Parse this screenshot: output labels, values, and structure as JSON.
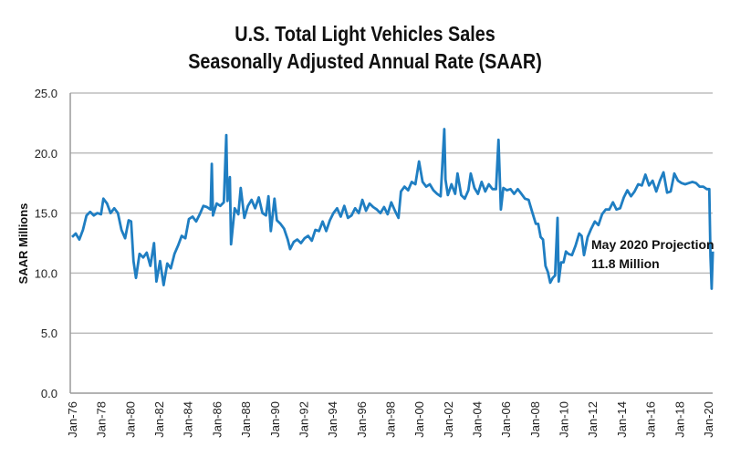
{
  "chart_data": {
    "type": "line",
    "title": "U.S. Total Light Vehicles Sales",
    "subtitle": "Seasonally Adjusted Annual Rate (SAAR)",
    "xlabel": "",
    "ylabel": "SAAR Millions",
    "ylim": [
      0,
      25
    ],
    "yticks": [
      "0.0",
      "5.0",
      "10.0",
      "15.0",
      "20.0",
      "25.0"
    ],
    "xticks": [
      "Jan-76",
      "Jan-78",
      "Jan-80",
      "Jan-82",
      "Jan-84",
      "Jan-86",
      "Jan-88",
      "Jan-90",
      "Jan-92",
      "Jan-94",
      "Jan-96",
      "Jan-98",
      "Jan-00",
      "Jan-02",
      "Jan-04",
      "Jan-06",
      "Jan-08",
      "Jan-10",
      "Jan-12",
      "Jan-14",
      "Jan-16",
      "Jan-18",
      "Jan-20"
    ],
    "grid": "horizontal",
    "line_color": "#1f7ec2",
    "annotation": {
      "line1": "May 2020 Projection",
      "line2": "11.8 Million"
    },
    "series": [
      {
        "x": [
          "1976-01",
          "1976-04",
          "1976-07",
          "1976-10",
          "1977-01",
          "1977-04",
          "1977-07",
          "1977-10",
          "1978-01",
          "1978-03",
          "1978-06",
          "1978-09",
          "1978-12",
          "1979-03",
          "1979-06",
          "1979-09",
          "1979-12",
          "1980-02",
          "1980-04",
          "1980-06",
          "1980-09",
          "1980-12",
          "1981-03",
          "1981-06",
          "1981-09",
          "1981-11",
          "1982-02",
          "1982-05",
          "1982-08",
          "1982-11",
          "1983-02",
          "1983-05",
          "1983-08",
          "1983-11",
          "1984-02",
          "1984-05",
          "1984-08",
          "1984-11",
          "1985-02",
          "1985-05",
          "1985-08",
          "1985-09",
          "1985-10",
          "1986-01",
          "1986-04",
          "1986-07",
          "1986-09",
          "1986-10",
          "1986-12",
          "1987-01",
          "1987-04",
          "1987-07",
          "1987-09",
          "1987-12",
          "1988-03",
          "1988-06",
          "1988-09",
          "1988-12",
          "1989-03",
          "1989-06",
          "1989-08",
          "1989-10",
          "1990-01",
          "1990-03",
          "1990-06",
          "1990-09",
          "1990-12",
          "1991-02",
          "1991-05",
          "1991-08",
          "1991-11",
          "1992-02",
          "1992-05",
          "1992-08",
          "1992-11",
          "1993-02",
          "1993-05",
          "1993-08",
          "1993-11",
          "1994-02",
          "1994-05",
          "1994-08",
          "1994-11",
          "1995-02",
          "1995-05",
          "1995-08",
          "1995-11",
          "1996-02",
          "1996-05",
          "1996-08",
          "1996-11",
          "1997-02",
          "1997-05",
          "1997-08",
          "1997-11",
          "1998-02",
          "1998-05",
          "1998-08",
          "1998-10",
          "1999-01",
          "1999-04",
          "1999-07",
          "1999-10",
          "2000-01",
          "2000-04",
          "2000-07",
          "2000-10",
          "2001-01",
          "2001-04",
          "2001-07",
          "2001-10",
          "2001-11",
          "2002-01",
          "2002-04",
          "2002-07",
          "2002-09",
          "2002-12",
          "2003-03",
          "2003-06",
          "2003-08",
          "2003-11",
          "2004-02",
          "2004-05",
          "2004-08",
          "2004-11",
          "2005-02",
          "2005-05",
          "2005-07",
          "2005-09",
          "2005-11",
          "2006-02",
          "2006-05",
          "2006-08",
          "2006-11",
          "2007-02",
          "2007-05",
          "2007-08",
          "2007-11",
          "2008-02",
          "2008-04",
          "2008-06",
          "2008-08",
          "2008-10",
          "2008-12",
          "2009-02",
          "2009-04",
          "2009-06",
          "2009-08",
          "2009-09",
          "2009-11",
          "2010-01",
          "2010-03",
          "2010-05",
          "2010-08",
          "2010-11",
          "2011-02",
          "2011-04",
          "2011-06",
          "2011-09",
          "2011-12",
          "2012-03",
          "2012-06",
          "2012-09",
          "2012-12",
          "2013-03",
          "2013-06",
          "2013-09",
          "2013-12",
          "2014-03",
          "2014-06",
          "2014-09",
          "2014-12",
          "2015-03",
          "2015-06",
          "2015-09",
          "2015-12",
          "2016-03",
          "2016-06",
          "2016-09",
          "2016-12",
          "2017-03",
          "2017-06",
          "2017-09",
          "2017-12",
          "2018-03",
          "2018-06",
          "2018-09",
          "2018-12",
          "2019-03",
          "2019-06",
          "2019-09",
          "2019-12",
          "2020-02",
          "2020-03",
          "2020-04",
          "2020-05"
        ],
        "y": [
          13.0,
          13.3,
          12.8,
          13.6,
          14.8,
          15.1,
          14.8,
          15.0,
          14.9,
          16.2,
          15.8,
          15.0,
          15.4,
          15.0,
          13.6,
          12.9,
          14.4,
          14.3,
          11.0,
          9.6,
          11.6,
          11.3,
          11.7,
          10.6,
          12.5,
          9.3,
          11.0,
          9.0,
          10.8,
          10.4,
          11.6,
          12.3,
          13.1,
          12.9,
          14.5,
          14.7,
          14.3,
          14.9,
          15.6,
          15.5,
          15.3,
          19.1,
          14.8,
          15.8,
          15.6,
          15.9,
          21.5,
          16.0,
          18.0,
          12.4,
          15.4,
          14.9,
          17.1,
          14.6,
          15.6,
          16.1,
          15.4,
          16.3,
          15.0,
          14.8,
          16.4,
          13.5,
          16.2,
          14.4,
          14.1,
          13.7,
          12.8,
          12.0,
          12.6,
          12.8,
          12.5,
          12.9,
          13.1,
          12.7,
          13.6,
          13.5,
          14.3,
          13.5,
          14.4,
          15.0,
          15.4,
          14.7,
          15.6,
          14.6,
          14.8,
          15.4,
          15.0,
          16.1,
          15.2,
          15.8,
          15.5,
          15.3,
          15.0,
          15.5,
          14.9,
          15.9,
          15.2,
          14.6,
          16.8,
          17.2,
          16.9,
          17.6,
          17.4,
          19.3,
          17.6,
          17.2,
          17.4,
          16.9,
          16.6,
          16.4,
          22.0,
          17.8,
          16.5,
          17.4,
          16.6,
          18.3,
          16.5,
          16.2,
          16.9,
          18.3,
          17.1,
          16.6,
          17.6,
          16.8,
          17.4,
          17.0,
          17.0,
          21.1,
          15.3,
          17.1,
          16.9,
          17.0,
          16.6,
          17.0,
          16.6,
          16.2,
          16.1,
          15.1,
          14.1,
          14.1,
          13.0,
          12.8,
          10.6,
          10.1,
          9.2,
          9.6,
          9.8,
          14.6,
          9.3,
          10.9,
          10.9,
          11.8,
          11.6,
          11.5,
          12.3,
          13.3,
          13.1,
          11.5,
          13.0,
          13.7,
          14.3,
          14.0,
          14.9,
          15.3,
          15.3,
          15.9,
          15.3,
          15.4,
          16.3,
          16.9,
          16.4,
          16.8,
          17.4,
          17.3,
          18.2,
          17.3,
          17.7,
          16.8,
          17.7,
          18.4,
          16.7,
          16.8,
          18.3,
          17.7,
          17.5,
          17.4,
          17.5,
          17.6,
          17.5,
          17.2,
          17.2,
          17.0,
          17.0,
          11.4,
          8.7,
          11.8
        ]
      }
    ]
  }
}
